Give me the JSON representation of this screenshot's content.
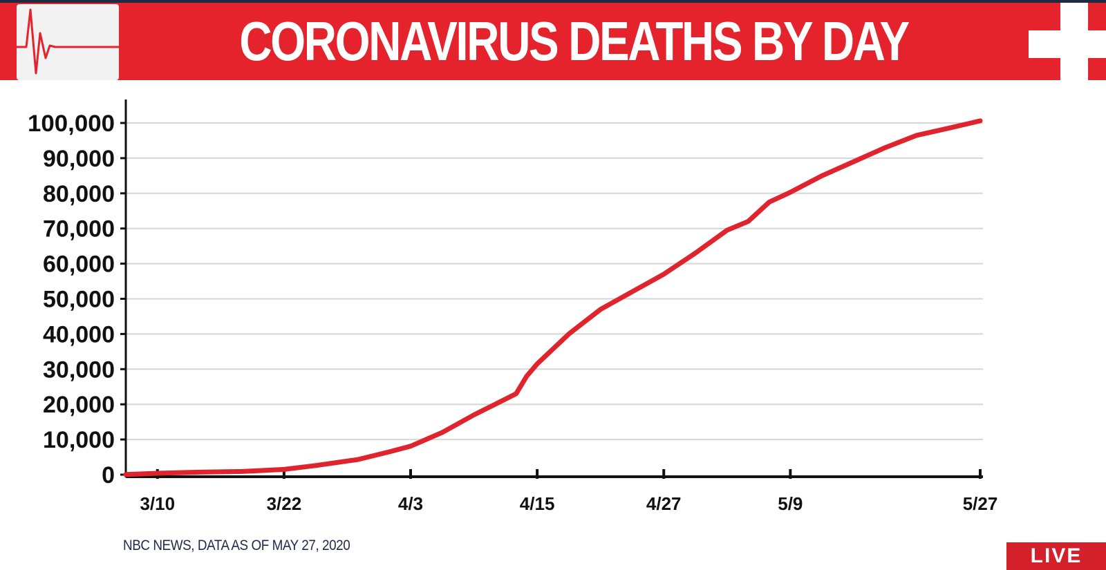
{
  "header": {
    "title": "CORONAVIRUS DEATHS BY DAY",
    "left_icon": "ekg-heartbeat-icon",
    "right_icon": "medical-cross-icon"
  },
  "colors": {
    "banner": "#e5232c",
    "line": "#e0242d",
    "live_badge": "#d4202a",
    "source_text": "#1e2a4a"
  },
  "chart_data": {
    "type": "line",
    "title": "CORONAVIRUS DEATHS BY DAY",
    "xlabel": "",
    "ylabel": "",
    "x_start": "3/7",
    "x_end": "5/27",
    "x_ticks": [
      "3/10",
      "3/22",
      "4/3",
      "4/15",
      "4/27",
      "5/9",
      "5/27"
    ],
    "y_ticks": [
      "0",
      "10,000",
      "20,000",
      "30,000",
      "40,000",
      "50,000",
      "60,000",
      "70,000",
      "80,000",
      "90,000",
      "100,000"
    ],
    "ylim": [
      0,
      100000
    ],
    "grid": true,
    "series": [
      {
        "x": [
          "3/7",
          "3/10",
          "3/14",
          "3/18",
          "3/22",
          "3/25",
          "3/29",
          "4/1",
          "4/3",
          "4/6",
          "4/9",
          "4/11",
          "4/13",
          "4/14",
          "4/15",
          "4/18",
          "4/21",
          "4/24",
          "4/27",
          "4/30",
          "5/3",
          "5/5",
          "5/7",
          "5/9",
          "5/12",
          "5/15",
          "5/18",
          "5/21",
          "5/24",
          "5/27"
        ],
        "values": [
          50,
          400,
          700,
          900,
          1500,
          2600,
          4300,
          6500,
          8100,
          12000,
          17000,
          20000,
          23000,
          28000,
          31500,
          40000,
          47000,
          52000,
          57000,
          63000,
          69500,
          72000,
          77500,
          80300,
          85000,
          89000,
          93000,
          96500,
          98500,
          100600
        ]
      }
    ]
  },
  "source": "NBC NEWS, DATA AS OF MAY 27, 2020",
  "badge": {
    "live_label": "LIVE"
  }
}
